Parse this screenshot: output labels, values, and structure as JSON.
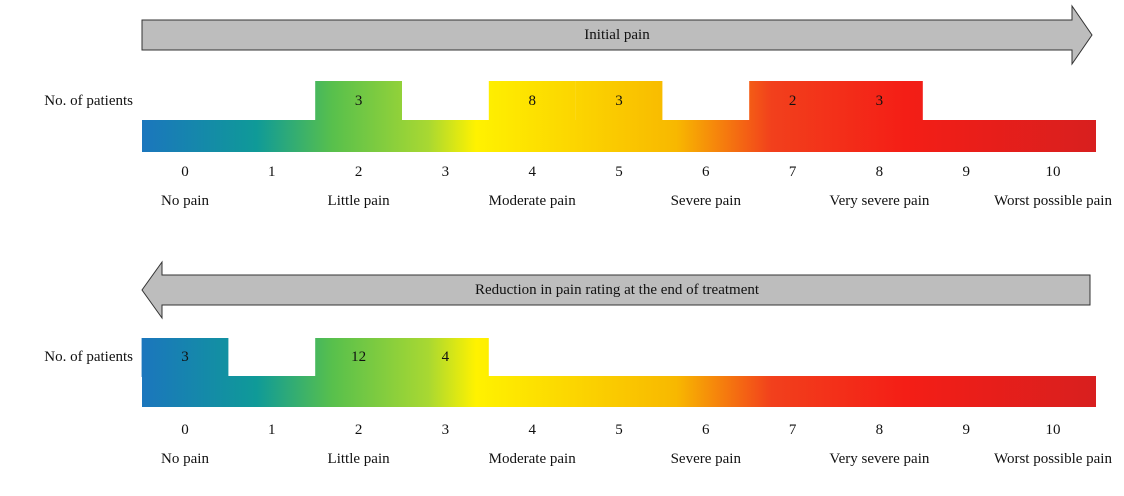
{
  "scale": {
    "ticks": [
      0,
      1,
      2,
      3,
      4,
      5,
      6,
      7,
      8,
      9,
      10
    ],
    "labels": [
      {
        "level": 0,
        "text": "No pain"
      },
      {
        "level": 2,
        "text": "Little pain"
      },
      {
        "level": 4,
        "text": "Moderate pain"
      },
      {
        "level": 6,
        "text": "Severe pain"
      },
      {
        "level": 8,
        "text": "Very severe pain"
      },
      {
        "level": 10,
        "text": "Worst possible pain"
      }
    ]
  },
  "panels": [
    {
      "arrow_label": "Initial pain",
      "y_label": "No. of patients",
      "boxes": [
        {
          "level": 2,
          "count": 3
        },
        {
          "level": 4,
          "count": 8
        },
        {
          "level": 5,
          "count": 3
        },
        {
          "level": 7,
          "count": 2
        },
        {
          "level": 8,
          "count": 3
        }
      ]
    },
    {
      "arrow_label": "Reduction in pain rating at the end of treatment",
      "y_label": "No. of patients",
      "boxes": [
        {
          "level": 0,
          "count": 3
        },
        {
          "level": 2,
          "count": 12
        },
        {
          "level": 3,
          "count": 4
        }
      ]
    }
  ]
}
